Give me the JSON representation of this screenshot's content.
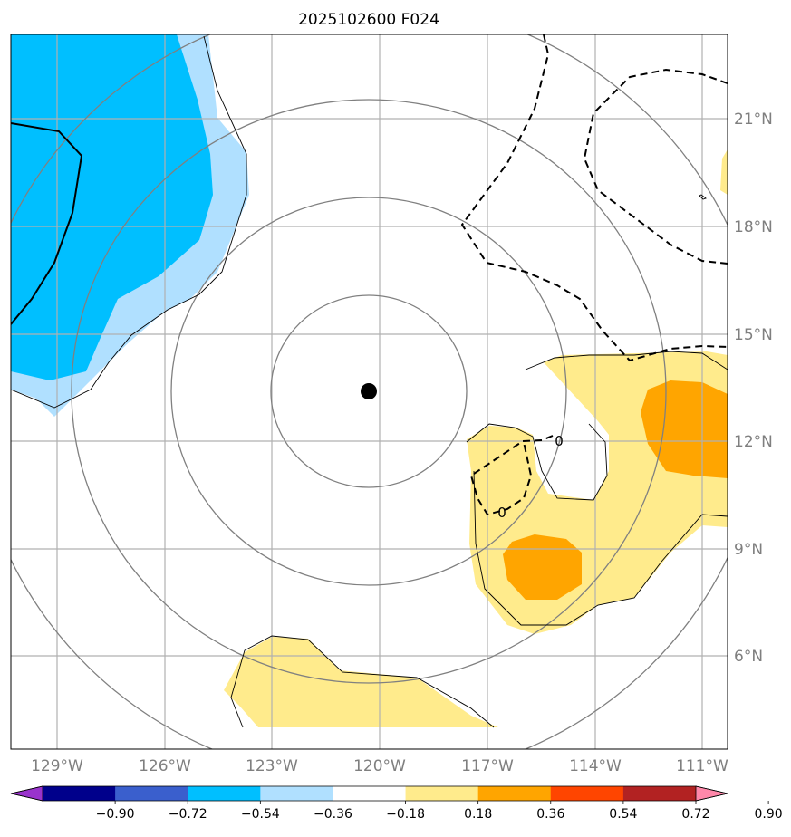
{
  "chart_data": {
    "type": "map-contour",
    "title": "2025102600 F024",
    "longitude_ticks": [
      "129°W",
      "126°W",
      "123°W",
      "120°W",
      "117°W",
      "114°W",
      "111°W"
    ],
    "latitude_ticks": [
      "21°N",
      "18°N",
      "15°N",
      "12°N",
      "9°N",
      "6°N"
    ],
    "lon_range": [
      -130.3,
      -110.3
    ],
    "lat_range": [
      3.5,
      23.4
    ],
    "storm_center": {
      "lon": -120.3,
      "lat": 13.4
    },
    "colorbar": {
      "levels": [
        -0.9,
        -0.72,
        -0.54,
        -0.36,
        -0.18,
        0.18,
        0.36,
        0.54,
        0.72,
        0.9
      ],
      "tick_labels": [
        "−0.90",
        "−0.72",
        "−0.54",
        "−0.36",
        "−0.18",
        "0.18",
        "0.36",
        "0.54",
        "0.72",
        "0.90"
      ],
      "colors": [
        "#9933cc",
        "#00008b",
        "#3a5fcd",
        "#00bfff",
        "#b0e0ff",
        "#ffffff",
        "#ffeb8c",
        "#ffa500",
        "#ff4500",
        "#b22222",
        "#ff88aa"
      ],
      "extend": "both"
    },
    "contour_labels": [
      "0",
      "0"
    ],
    "colors": {
      "coastline": "#000000",
      "range_rings": "#808080",
      "gridlines": "#b0b0b0",
      "tick_text": "#7f7f7f"
    }
  }
}
